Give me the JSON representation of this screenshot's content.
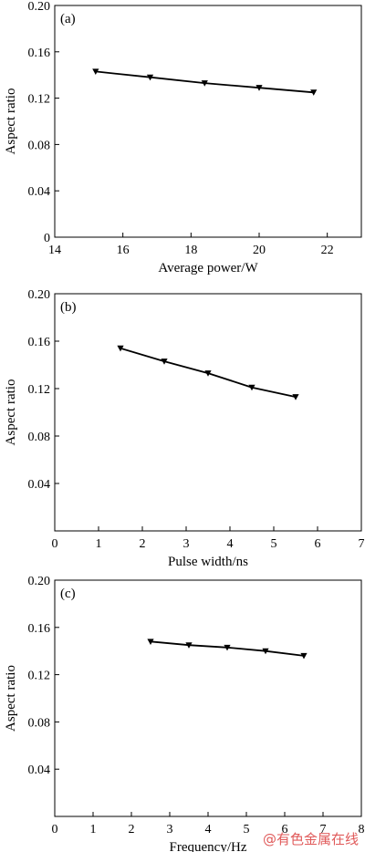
{
  "watermark": "@有色金属在线",
  "chart_data": [
    {
      "type": "line",
      "panel": "(a)",
      "xlabel": "Average power/W",
      "ylabel": "Aspect ratio",
      "xlim": [
        14,
        23
      ],
      "ylim": [
        0,
        0.2
      ],
      "xticks": [
        14,
        16,
        18,
        20,
        22
      ],
      "yticks": [
        0,
        0.04,
        0.08,
        0.12,
        0.16,
        0.2
      ],
      "ytick_labels": [
        "0",
        "0.04",
        "0.08",
        "0.12",
        "0.16",
        "0.20"
      ],
      "show_zero_x": true,
      "series": [
        {
          "x": [
            15.2,
            16.8,
            18.4,
            20.0,
            21.6
          ],
          "y": [
            0.143,
            0.138,
            0.133,
            0.129,
            0.125
          ]
        }
      ],
      "marker": "triangle-down",
      "grid": false
    },
    {
      "type": "line",
      "panel": "(b)",
      "xlabel": "Pulse width/ns",
      "ylabel": "Aspect ratio",
      "xlim": [
        0,
        7
      ],
      "ylim": [
        0,
        0.2
      ],
      "xticks": [
        0,
        1,
        2,
        3,
        4,
        5,
        6,
        7
      ],
      "yticks": [
        0.04,
        0.08,
        0.12,
        0.16,
        0.2
      ],
      "ytick_labels": [
        "0.04",
        "0.08",
        "0.12",
        "0.16",
        "0.20"
      ],
      "series": [
        {
          "x": [
            1.5,
            2.5,
            3.5,
            4.5,
            5.5
          ],
          "y": [
            0.154,
            0.143,
            0.133,
            0.121,
            0.113
          ]
        }
      ],
      "marker": "triangle-down",
      "grid": false
    },
    {
      "type": "line",
      "panel": "(c)",
      "xlabel": "Frequency/Hz",
      "ylabel": "Aspect ratio",
      "xlim": [
        0,
        8
      ],
      "ylim": [
        0,
        0.2
      ],
      "xticks": [
        0,
        1,
        2,
        3,
        4,
        5,
        6,
        7,
        8
      ],
      "yticks": [
        0.04,
        0.08,
        0.12,
        0.16,
        0.2
      ],
      "ytick_labels": [
        "0.04",
        "0.08",
        "0.12",
        "0.16",
        "0.20"
      ],
      "series": [
        {
          "x": [
            2.5,
            3.5,
            4.5,
            5.5,
            6.5
          ],
          "y": [
            0.148,
            0.145,
            0.143,
            0.14,
            0.136
          ]
        }
      ],
      "marker": "triangle-down",
      "grid": false
    }
  ]
}
